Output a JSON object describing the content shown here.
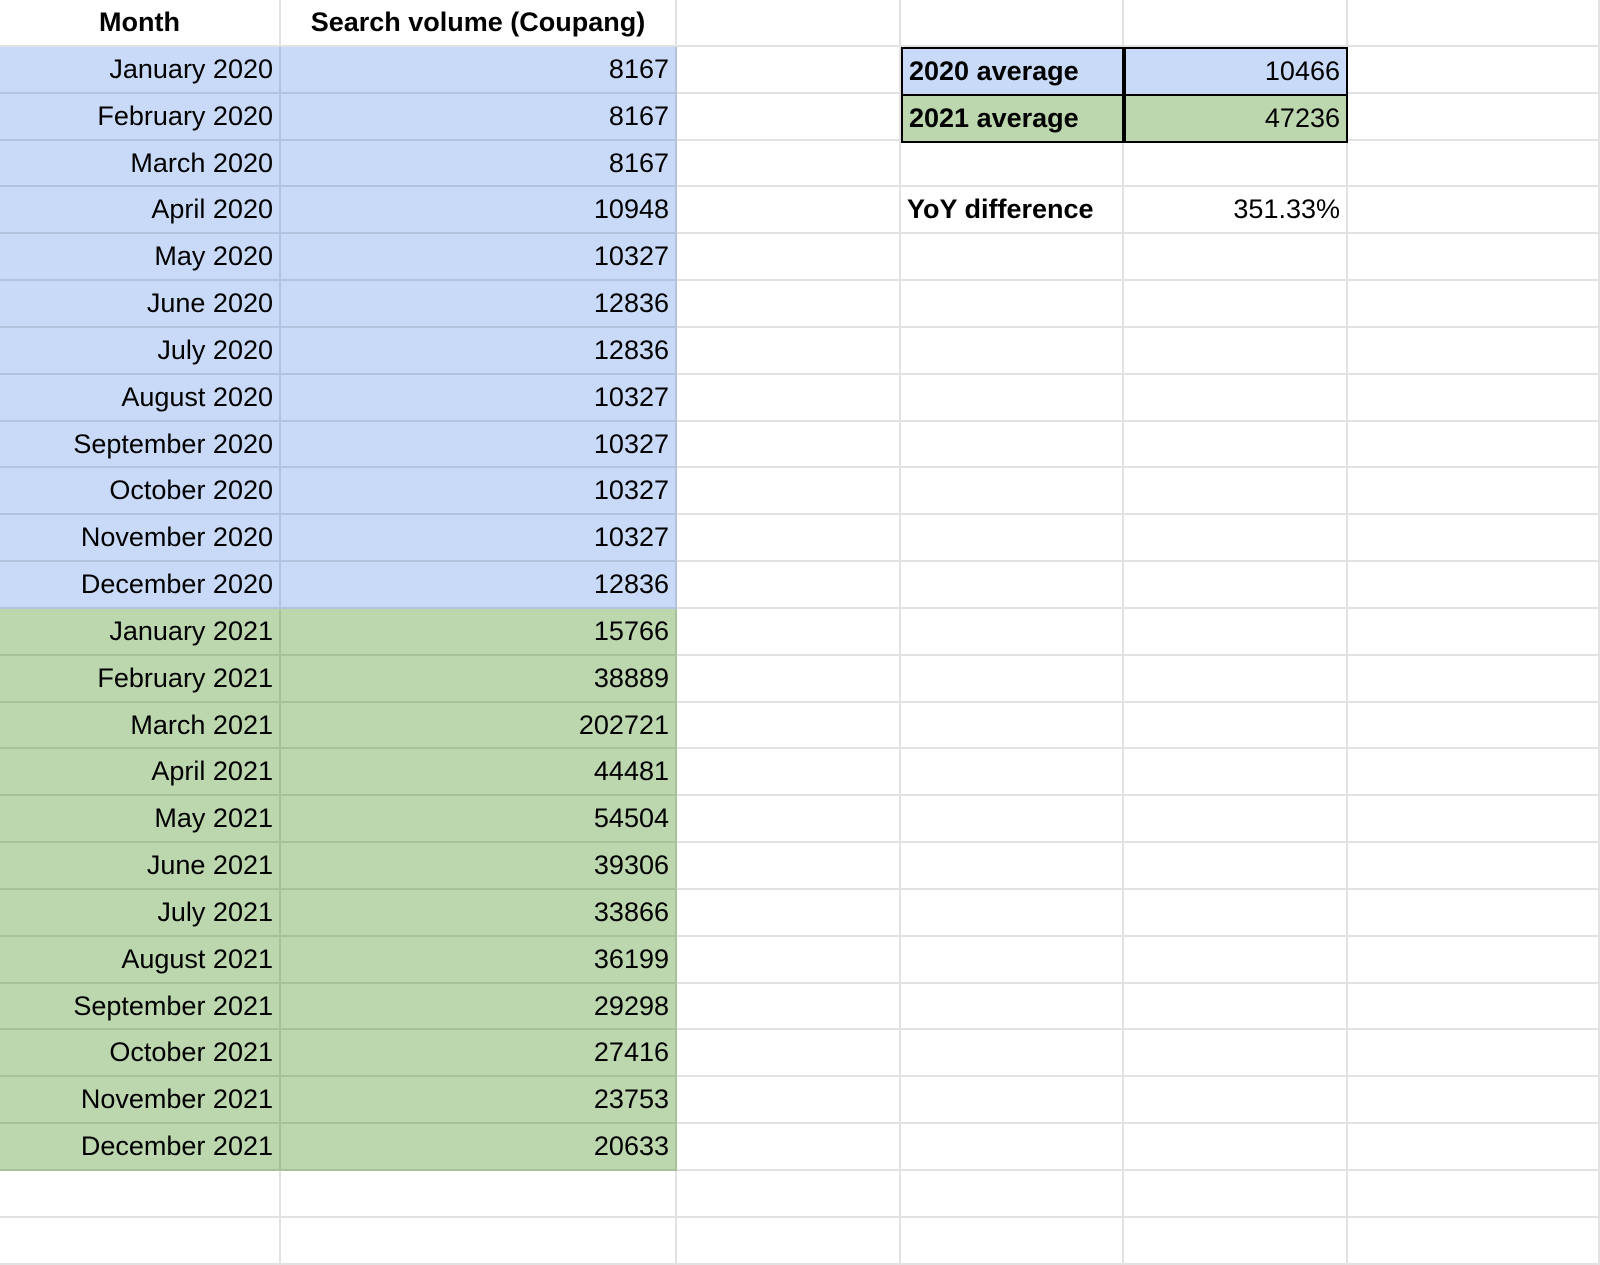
{
  "sheet": {
    "headers": {
      "month": "Month",
      "volume": "Search volume (Coupang)"
    },
    "rows": [
      {
        "month": "January 2020",
        "volume": "8167",
        "year": 2020
      },
      {
        "month": "February 2020",
        "volume": "8167",
        "year": 2020
      },
      {
        "month": "March 2020",
        "volume": "8167",
        "year": 2020
      },
      {
        "month": "April 2020",
        "volume": "10948",
        "year": 2020
      },
      {
        "month": "May 2020",
        "volume": "10327",
        "year": 2020
      },
      {
        "month": "June 2020",
        "volume": "12836",
        "year": 2020
      },
      {
        "month": "July 2020",
        "volume": "12836",
        "year": 2020
      },
      {
        "month": "August 2020",
        "volume": "10327",
        "year": 2020
      },
      {
        "month": "September 2020",
        "volume": "10327",
        "year": 2020
      },
      {
        "month": "October 2020",
        "volume": "10327",
        "year": 2020
      },
      {
        "month": "November 2020",
        "volume": "10327",
        "year": 2020
      },
      {
        "month": "December 2020",
        "volume": "12836",
        "year": 2020
      },
      {
        "month": "January 2021",
        "volume": "15766",
        "year": 2021
      },
      {
        "month": "February 2021",
        "volume": "38889",
        "year": 2021
      },
      {
        "month": "March 2021",
        "volume": "202721",
        "year": 2021
      },
      {
        "month": "April 2021",
        "volume": "44481",
        "year": 2021
      },
      {
        "month": "May 2021",
        "volume": "54504",
        "year": 2021
      },
      {
        "month": "June 2021",
        "volume": "39306",
        "year": 2021
      },
      {
        "month": "July 2021",
        "volume": "33866",
        "year": 2021
      },
      {
        "month": "August 2021",
        "volume": "36199",
        "year": 2021
      },
      {
        "month": "September 2021",
        "volume": "29298",
        "year": 2021
      },
      {
        "month": "October 2021",
        "volume": "27416",
        "year": 2021
      },
      {
        "month": "November 2021",
        "volume": "23753",
        "year": 2021
      },
      {
        "month": "December 2021",
        "volume": "20633",
        "year": 2021
      }
    ],
    "summary": {
      "avg2020_label": "2020 average",
      "avg2020_value": "10466",
      "avg2021_label": "2021 average",
      "avg2021_value": "47236",
      "yoy_label": "YoY difference",
      "yoy_value": "351.33%"
    },
    "colors": {
      "year_2020": "#c9daf8",
      "year_2021": "#bcd6ae",
      "gridline": "#e2e2e2"
    }
  }
}
